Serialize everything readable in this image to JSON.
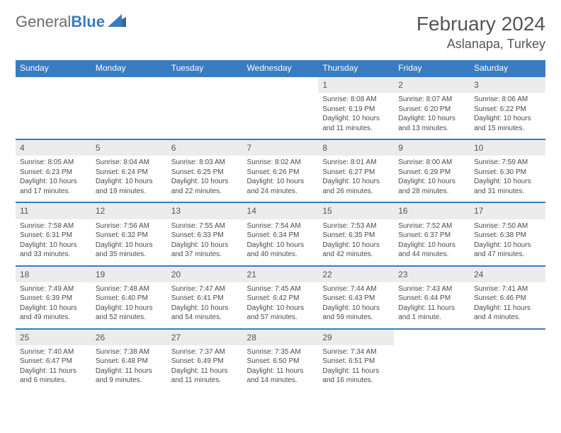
{
  "brand": {
    "part1": "General",
    "part2": "Blue"
  },
  "title": "February 2024",
  "location": "Aslanapa, Turkey",
  "colors": {
    "header_bg": "#3b7bbf",
    "header_text": "#ffffff",
    "daynum_bg": "#ececec",
    "border": "#3b7bbf",
    "text": "#4a4a4a",
    "title": "#555555"
  },
  "day_headers": [
    "Sunday",
    "Monday",
    "Tuesday",
    "Wednesday",
    "Thursday",
    "Friday",
    "Saturday"
  ],
  "weeks": [
    [
      null,
      null,
      null,
      null,
      {
        "n": "1",
        "sr": "Sunrise: 8:08 AM",
        "ss": "Sunset: 6:19 PM",
        "d1": "Daylight: 10 hours",
        "d2": "and 11 minutes."
      },
      {
        "n": "2",
        "sr": "Sunrise: 8:07 AM",
        "ss": "Sunset: 6:20 PM",
        "d1": "Daylight: 10 hours",
        "d2": "and 13 minutes."
      },
      {
        "n": "3",
        "sr": "Sunrise: 8:06 AM",
        "ss": "Sunset: 6:22 PM",
        "d1": "Daylight: 10 hours",
        "d2": "and 15 minutes."
      }
    ],
    [
      {
        "n": "4",
        "sr": "Sunrise: 8:05 AM",
        "ss": "Sunset: 6:23 PM",
        "d1": "Daylight: 10 hours",
        "d2": "and 17 minutes."
      },
      {
        "n": "5",
        "sr": "Sunrise: 8:04 AM",
        "ss": "Sunset: 6:24 PM",
        "d1": "Daylight: 10 hours",
        "d2": "and 19 minutes."
      },
      {
        "n": "6",
        "sr": "Sunrise: 8:03 AM",
        "ss": "Sunset: 6:25 PM",
        "d1": "Daylight: 10 hours",
        "d2": "and 22 minutes."
      },
      {
        "n": "7",
        "sr": "Sunrise: 8:02 AM",
        "ss": "Sunset: 6:26 PM",
        "d1": "Daylight: 10 hours",
        "d2": "and 24 minutes."
      },
      {
        "n": "8",
        "sr": "Sunrise: 8:01 AM",
        "ss": "Sunset: 6:27 PM",
        "d1": "Daylight: 10 hours",
        "d2": "and 26 minutes."
      },
      {
        "n": "9",
        "sr": "Sunrise: 8:00 AM",
        "ss": "Sunset: 6:29 PM",
        "d1": "Daylight: 10 hours",
        "d2": "and 28 minutes."
      },
      {
        "n": "10",
        "sr": "Sunrise: 7:59 AM",
        "ss": "Sunset: 6:30 PM",
        "d1": "Daylight: 10 hours",
        "d2": "and 31 minutes."
      }
    ],
    [
      {
        "n": "11",
        "sr": "Sunrise: 7:58 AM",
        "ss": "Sunset: 6:31 PM",
        "d1": "Daylight: 10 hours",
        "d2": "and 33 minutes."
      },
      {
        "n": "12",
        "sr": "Sunrise: 7:56 AM",
        "ss": "Sunset: 6:32 PM",
        "d1": "Daylight: 10 hours",
        "d2": "and 35 minutes."
      },
      {
        "n": "13",
        "sr": "Sunrise: 7:55 AM",
        "ss": "Sunset: 6:33 PM",
        "d1": "Daylight: 10 hours",
        "d2": "and 37 minutes."
      },
      {
        "n": "14",
        "sr": "Sunrise: 7:54 AM",
        "ss": "Sunset: 6:34 PM",
        "d1": "Daylight: 10 hours",
        "d2": "and 40 minutes."
      },
      {
        "n": "15",
        "sr": "Sunrise: 7:53 AM",
        "ss": "Sunset: 6:35 PM",
        "d1": "Daylight: 10 hours",
        "d2": "and 42 minutes."
      },
      {
        "n": "16",
        "sr": "Sunrise: 7:52 AM",
        "ss": "Sunset: 6:37 PM",
        "d1": "Daylight: 10 hours",
        "d2": "and 44 minutes."
      },
      {
        "n": "17",
        "sr": "Sunrise: 7:50 AM",
        "ss": "Sunset: 6:38 PM",
        "d1": "Daylight: 10 hours",
        "d2": "and 47 minutes."
      }
    ],
    [
      {
        "n": "18",
        "sr": "Sunrise: 7:49 AM",
        "ss": "Sunset: 6:39 PM",
        "d1": "Daylight: 10 hours",
        "d2": "and 49 minutes."
      },
      {
        "n": "19",
        "sr": "Sunrise: 7:48 AM",
        "ss": "Sunset: 6:40 PM",
        "d1": "Daylight: 10 hours",
        "d2": "and 52 minutes."
      },
      {
        "n": "20",
        "sr": "Sunrise: 7:47 AM",
        "ss": "Sunset: 6:41 PM",
        "d1": "Daylight: 10 hours",
        "d2": "and 54 minutes."
      },
      {
        "n": "21",
        "sr": "Sunrise: 7:45 AM",
        "ss": "Sunset: 6:42 PM",
        "d1": "Daylight: 10 hours",
        "d2": "and 57 minutes."
      },
      {
        "n": "22",
        "sr": "Sunrise: 7:44 AM",
        "ss": "Sunset: 6:43 PM",
        "d1": "Daylight: 10 hours",
        "d2": "and 59 minutes."
      },
      {
        "n": "23",
        "sr": "Sunrise: 7:43 AM",
        "ss": "Sunset: 6:44 PM",
        "d1": "Daylight: 11 hours",
        "d2": "and 1 minute."
      },
      {
        "n": "24",
        "sr": "Sunrise: 7:41 AM",
        "ss": "Sunset: 6:46 PM",
        "d1": "Daylight: 11 hours",
        "d2": "and 4 minutes."
      }
    ],
    [
      {
        "n": "25",
        "sr": "Sunrise: 7:40 AM",
        "ss": "Sunset: 6:47 PM",
        "d1": "Daylight: 11 hours",
        "d2": "and 6 minutes."
      },
      {
        "n": "26",
        "sr": "Sunrise: 7:38 AM",
        "ss": "Sunset: 6:48 PM",
        "d1": "Daylight: 11 hours",
        "d2": "and 9 minutes."
      },
      {
        "n": "27",
        "sr": "Sunrise: 7:37 AM",
        "ss": "Sunset: 6:49 PM",
        "d1": "Daylight: 11 hours",
        "d2": "and 11 minutes."
      },
      {
        "n": "28",
        "sr": "Sunrise: 7:35 AM",
        "ss": "Sunset: 6:50 PM",
        "d1": "Daylight: 11 hours",
        "d2": "and 14 minutes."
      },
      {
        "n": "29",
        "sr": "Sunrise: 7:34 AM",
        "ss": "Sunset: 6:51 PM",
        "d1": "Daylight: 11 hours",
        "d2": "and 16 minutes."
      },
      null,
      null
    ]
  ]
}
